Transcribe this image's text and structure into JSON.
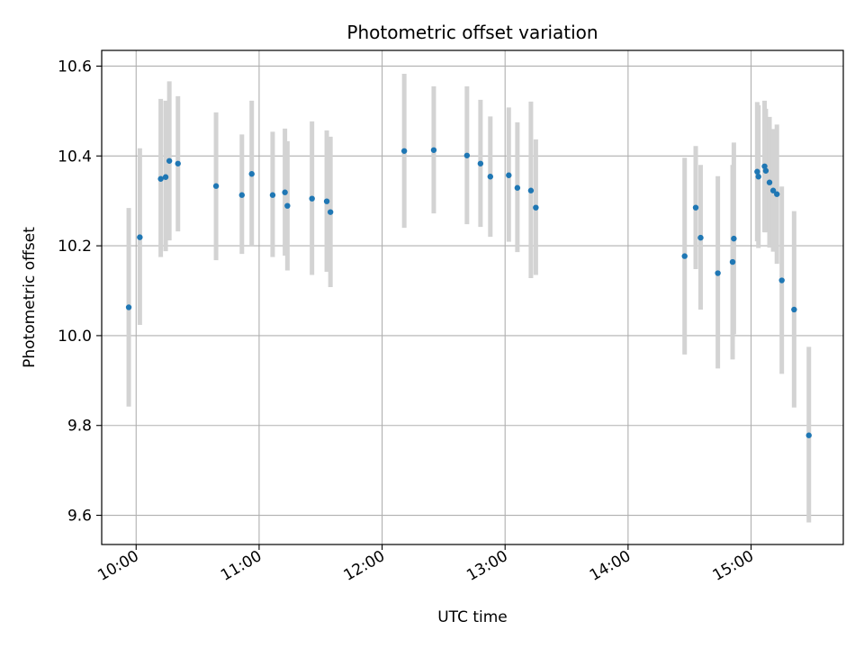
{
  "chart_data": {
    "type": "scatter",
    "title": "Photometric offset variation",
    "xlabel": "UTC time",
    "ylabel": "Photometric offset",
    "x_unit": "hours (UTC)",
    "xlim": [
      9.72,
      15.75
    ],
    "ylim": [
      9.535,
      10.635
    ],
    "x_ticks": [
      {
        "value": 10,
        "label": "10:00"
      },
      {
        "value": 11,
        "label": "11:00"
      },
      {
        "value": 12,
        "label": "12:00"
      },
      {
        "value": 13,
        "label": "13:00"
      },
      {
        "value": 14,
        "label": "14:00"
      },
      {
        "value": 15,
        "label": "15:00"
      }
    ],
    "y_ticks": [
      {
        "value": 9.6,
        "label": "9.6"
      },
      {
        "value": 9.8,
        "label": "9.8"
      },
      {
        "value": 10.0,
        "label": "10.0"
      },
      {
        "value": 10.2,
        "label": "10.2"
      },
      {
        "value": 10.4,
        "label": "10.4"
      },
      {
        "value": 10.6,
        "label": "10.6"
      }
    ],
    "grid": true,
    "legend": false,
    "marker_color": "#1f77b4",
    "errorbar_color": "#d3d3d3",
    "points": [
      {
        "x": 9.94,
        "y": 10.063,
        "lo": 9.842,
        "hi": 10.284
      },
      {
        "x": 10.03,
        "y": 10.219,
        "lo": 10.024,
        "hi": 10.417
      },
      {
        "x": 10.2,
        "y": 10.349,
        "lo": 10.175,
        "hi": 10.527
      },
      {
        "x": 10.24,
        "y": 10.353,
        "lo": 10.188,
        "hi": 10.523
      },
      {
        "x": 10.27,
        "y": 10.389,
        "lo": 10.212,
        "hi": 10.566
      },
      {
        "x": 10.34,
        "y": 10.383,
        "lo": 10.232,
        "hi": 10.533
      },
      {
        "x": 10.65,
        "y": 10.333,
        "lo": 10.168,
        "hi": 10.497
      },
      {
        "x": 10.86,
        "y": 10.313,
        "lo": 10.182,
        "hi": 10.448
      },
      {
        "x": 10.94,
        "y": 10.36,
        "lo": 10.2,
        "hi": 10.523
      },
      {
        "x": 11.11,
        "y": 10.313,
        "lo": 10.175,
        "hi": 10.454
      },
      {
        "x": 11.21,
        "y": 10.319,
        "lo": 10.178,
        "hi": 10.461
      },
      {
        "x": 11.23,
        "y": 10.289,
        "lo": 10.145,
        "hi": 10.433
      },
      {
        "x": 11.43,
        "y": 10.305,
        "lo": 10.135,
        "hi": 10.477
      },
      {
        "x": 11.55,
        "y": 10.299,
        "lo": 10.142,
        "hi": 10.457
      },
      {
        "x": 11.58,
        "y": 10.275,
        "lo": 10.108,
        "hi": 10.443
      },
      {
        "x": 12.18,
        "y": 10.411,
        "lo": 10.24,
        "hi": 10.583
      },
      {
        "x": 12.42,
        "y": 10.413,
        "lo": 10.272,
        "hi": 10.555
      },
      {
        "x": 12.69,
        "y": 10.401,
        "lo": 10.248,
        "hi": 10.555
      },
      {
        "x": 12.8,
        "y": 10.383,
        "lo": 10.242,
        "hi": 10.525
      },
      {
        "x": 12.88,
        "y": 10.354,
        "lo": 10.22,
        "hi": 10.488
      },
      {
        "x": 13.03,
        "y": 10.357,
        "lo": 10.209,
        "hi": 10.508
      },
      {
        "x": 13.1,
        "y": 10.329,
        "lo": 10.186,
        "hi": 10.475
      },
      {
        "x": 13.21,
        "y": 10.323,
        "lo": 10.128,
        "hi": 10.521
      },
      {
        "x": 13.25,
        "y": 10.285,
        "lo": 10.135,
        "hi": 10.437
      },
      {
        "x": 14.46,
        "y": 10.177,
        "lo": 9.958,
        "hi": 10.396
      },
      {
        "x": 14.55,
        "y": 10.285,
        "lo": 10.148,
        "hi": 10.422
      },
      {
        "x": 14.59,
        "y": 10.218,
        "lo": 10.058,
        "hi": 10.38
      },
      {
        "x": 14.73,
        "y": 10.139,
        "lo": 9.927,
        "hi": 10.355
      },
      {
        "x": 14.85,
        "y": 10.164,
        "lo": 9.947,
        "hi": 10.38
      },
      {
        "x": 14.86,
        "y": 10.216,
        "lo": 10.003,
        "hi": 10.43
      },
      {
        "x": 15.05,
        "y": 10.365,
        "lo": 10.21,
        "hi": 10.52
      },
      {
        "x": 15.06,
        "y": 10.354,
        "lo": 10.195,
        "hi": 10.513
      },
      {
        "x": 15.11,
        "y": 10.377,
        "lo": 10.23,
        "hi": 10.523
      },
      {
        "x": 15.12,
        "y": 10.367,
        "lo": 10.23,
        "hi": 10.505
      },
      {
        "x": 15.15,
        "y": 10.341,
        "lo": 10.196,
        "hi": 10.487
      },
      {
        "x": 15.18,
        "y": 10.323,
        "lo": 10.187,
        "hi": 10.46
      },
      {
        "x": 15.21,
        "y": 10.315,
        "lo": 10.16,
        "hi": 10.47
      },
      {
        "x": 15.25,
        "y": 10.123,
        "lo": 9.915,
        "hi": 10.332
      },
      {
        "x": 15.35,
        "y": 10.058,
        "lo": 9.84,
        "hi": 10.277
      },
      {
        "x": 15.47,
        "y": 9.778,
        "lo": 9.584,
        "hi": 9.975
      }
    ]
  }
}
